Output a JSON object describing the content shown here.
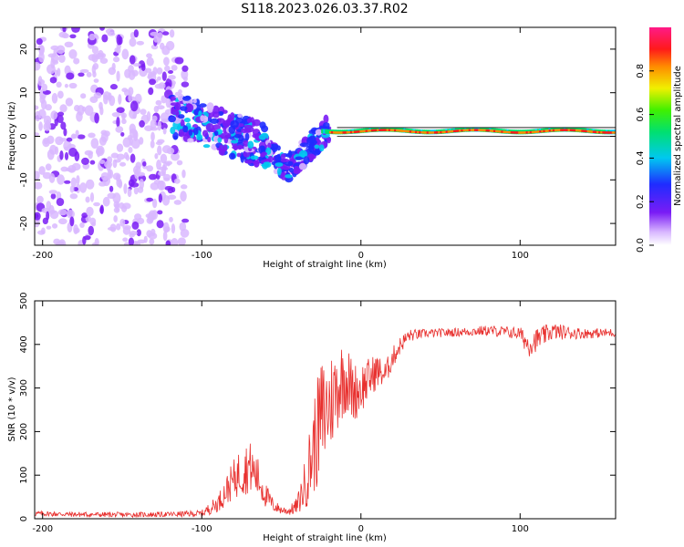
{
  "title": "S118.2023.026.03.37.R02",
  "colorbar": {
    "label": "Normalized spectral amplitude",
    "range": [
      0.0,
      1.0
    ],
    "ticks": [
      "0.0",
      "0.2",
      "0.4",
      "0.6",
      "0.8"
    ],
    "tick_values": [
      0.0,
      0.2,
      0.4,
      0.6,
      0.8
    ]
  },
  "chart_data": [
    {
      "type": "heatmap",
      "title": "",
      "xlabel": "Height of straight line (km)",
      "ylabel": "Frequency (Hz)",
      "xlim": [
        -205,
        160
      ],
      "ylim": [
        -25,
        25
      ],
      "xticks": [
        -200,
        -100,
        0,
        100
      ],
      "xtick_labels": [
        "-200",
        "-100",
        "0",
        "100"
      ],
      "yticks": [
        20,
        10,
        0,
        -10,
        -20
      ],
      "ytick_labels": [
        "20",
        "10",
        "0",
        "-10",
        "-20"
      ],
      "description_regions": [
        {
          "x_range": [
            -205,
            -115
          ],
          "f_range": [
            -25,
            25
          ],
          "amplitude": 0.15,
          "pattern": "scattered noise"
        },
        {
          "x_range": [
            -120,
            -60
          ],
          "f_range": [
            -8,
            8
          ],
          "amplitude": 0.3,
          "pattern": "descending band"
        },
        {
          "x_range": [
            -60,
            -20
          ],
          "f_range": [
            -12,
            4
          ],
          "amplitude": 0.35,
          "pattern": "dip then rise"
        },
        {
          "x_range": [
            -20,
            160
          ],
          "f_range": [
            0,
            2
          ],
          "amplitude": 0.9,
          "pattern": "steady carrier line near 1 Hz"
        }
      ]
    },
    {
      "type": "line",
      "title": "",
      "xlabel": "Height of straight line (km)",
      "ylabel": "SNR (10 * v/v)",
      "xlim": [
        -205,
        160
      ],
      "ylim": [
        0,
        500
      ],
      "xticks": [
        -200,
        -100,
        0,
        100
      ],
      "xtick_labels": [
        "-200",
        "-100",
        "0",
        "100"
      ],
      "yticks": [
        0,
        100,
        200,
        300,
        400,
        500
      ],
      "ytick_labels": [
        "0",
        "100",
        "200",
        "300",
        "400",
        "500"
      ],
      "color": "#e8302e",
      "series": [
        {
          "name": "SNR",
          "x": [
            -205,
            -180,
            -150,
            -120,
            -100,
            -90,
            -80,
            -75,
            -70,
            -65,
            -60,
            -55,
            -50,
            -45,
            -40,
            -35,
            -30,
            -25,
            -20,
            -15,
            -10,
            -5,
            0,
            5,
            10,
            15,
            20,
            25,
            30,
            40,
            60,
            80,
            100,
            105,
            120,
            140,
            160
          ],
          "y": [
            12,
            10,
            9,
            10,
            12,
            35,
            90,
            110,
            120,
            95,
            55,
            30,
            20,
            18,
            30,
            80,
            160,
            230,
            260,
            300,
            330,
            290,
            300,
            320,
            340,
            330,
            370,
            400,
            420,
            425,
            428,
            432,
            425,
            400,
            430,
            425,
            427
          ],
          "noise_amplitude": [
            6,
            6,
            6,
            6,
            8,
            20,
            45,
            60,
            60,
            50,
            30,
            15,
            10,
            10,
            20,
            60,
            110,
            140,
            120,
            100,
            90,
            70,
            60,
            50,
            40,
            30,
            25,
            20,
            15,
            10,
            10,
            12,
            15,
            30,
            20,
            12,
            10
          ]
        }
      ]
    }
  ]
}
